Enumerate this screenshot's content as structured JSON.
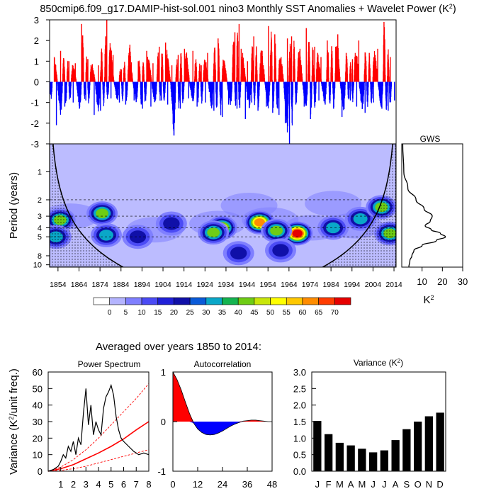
{
  "title": "850cmip6.f09_g17.DAMIP-hist-sol.001 nino3 Monthly SST Anomalies + Wavelet Power (K",
  "title_sup": "2",
  "title_close": ")",
  "subtitle": "Averaged over years 1850 to 2014:",
  "colors": {
    "positive": "#ff0000",
    "negative": "#0000ff",
    "coi_fill": "#bcbcff",
    "bar": "#000000",
    "red_line": "#ff0000"
  },
  "chart_data": [
    {
      "name": "SST anomalies",
      "type": "bar",
      "x_range": [
        1850,
        2015
      ],
      "ylim": [
        -3,
        3
      ],
      "yticks": [
        "3",
        "2",
        "1",
        "0",
        "-1",
        "-2",
        "-3"
      ],
      "peaks_positive": [
        [
          1852,
          1.2
        ],
        [
          1855,
          1.5
        ],
        [
          1859,
          1.0
        ],
        [
          1862,
          0.9
        ],
        [
          1865,
          2.8
        ],
        [
          1868,
          1.1
        ],
        [
          1873,
          0.8
        ],
        [
          1877,
          3.0
        ],
        [
          1880,
          1.3
        ],
        [
          1884,
          0.6
        ],
        [
          1888,
          1.8
        ],
        [
          1892,
          1.0
        ],
        [
          1896,
          1.5
        ],
        [
          1899,
          0.9
        ],
        [
          1902,
          1.7
        ],
        [
          1905,
          1.9
        ],
        [
          1908,
          0.8
        ],
        [
          1911,
          1.3
        ],
        [
          1914,
          1.6
        ],
        [
          1918,
          1.5
        ],
        [
          1922,
          0.8
        ],
        [
          1925,
          1.4
        ],
        [
          1930,
          2.1
        ],
        [
          1933,
          1.0
        ],
        [
          1938,
          2.4
        ],
        [
          1940,
          2.8
        ],
        [
          1941,
          1.6
        ],
        [
          1944,
          1.0
        ],
        [
          1947,
          2.2
        ],
        [
          1951,
          1.5
        ],
        [
          1954,
          2.7
        ],
        [
          1957,
          2.3
        ],
        [
          1960,
          1.2
        ],
        [
          1963,
          2.1
        ],
        [
          1965,
          2.2
        ],
        [
          1969,
          1.6
        ],
        [
          1972,
          2.6
        ],
        [
          1976,
          1.7
        ],
        [
          1979,
          1.2
        ],
        [
          1982,
          2.0
        ],
        [
          1986,
          1.7
        ],
        [
          1987,
          2.3
        ],
        [
          1991,
          1.4
        ],
        [
          1994,
          1.1
        ],
        [
          1997,
          2.0
        ],
        [
          2002,
          1.4
        ],
        [
          2006,
          1.6
        ],
        [
          2009,
          2.9
        ],
        [
          2012,
          1.2
        ]
      ],
      "peaks_negative": [
        [
          1850,
          -0.6
        ],
        [
          1853,
          -2.1
        ],
        [
          1857,
          -1.2
        ],
        [
          1861,
          -1.0
        ],
        [
          1864,
          -1.3
        ],
        [
          1867,
          -0.9
        ],
        [
          1871,
          -1.6
        ],
        [
          1874,
          -1.4
        ],
        [
          1879,
          -0.8
        ],
        [
          1883,
          -1.0
        ],
        [
          1886,
          -1.1
        ],
        [
          1890,
          -0.9
        ],
        [
          1894,
          -1.3
        ],
        [
          1898,
          -1.2
        ],
        [
          1903,
          -0.9
        ],
        [
          1906,
          -1.1
        ],
        [
          1909,
          -2.6
        ],
        [
          1912,
          -1.3
        ],
        [
          1916,
          -0.8
        ],
        [
          1920,
          -1.2
        ],
        [
          1924,
          -1.0
        ],
        [
          1928,
          -1.4
        ],
        [
          1932,
          -1.7
        ],
        [
          1935,
          -1.1
        ],
        [
          1939,
          -1.3
        ],
        [
          1943,
          -1.8
        ],
        [
          1946,
          -1.0
        ],
        [
          1949,
          -1.4
        ],
        [
          1953,
          -1.2
        ],
        [
          1956,
          -1.5
        ],
        [
          1959,
          -1.6
        ],
        [
          1962,
          -2.0
        ],
        [
          1964,
          -3.0
        ],
        [
          1967,
          -1.1
        ],
        [
          1971,
          -1.2
        ],
        [
          1974,
          -1.8
        ],
        [
          1978,
          -0.9
        ],
        [
          1981,
          -1.1
        ],
        [
          1985,
          -1.3
        ],
        [
          1989,
          -1.7
        ],
        [
          1993,
          -0.9
        ],
        [
          1996,
          -1.2
        ],
        [
          2000,
          -1.5
        ],
        [
          2004,
          -1.0
        ],
        [
          2008,
          -1.3
        ],
        [
          2011,
          -1.4
        ],
        [
          2014,
          -0.9
        ]
      ]
    },
    {
      "name": "Wavelet Power",
      "type": "heatmap",
      "x_range": [
        1850,
        2015
      ],
      "xticks": [
        "1854",
        "1864",
        "1874",
        "1884",
        "1894",
        "1904",
        "1914",
        "1924",
        "1934",
        "1944",
        "1954",
        "1964",
        "1974",
        "1984",
        "1994",
        "2004",
        "2014"
      ],
      "ylabel": "Period (years)",
      "yticks": [
        "1",
        "2",
        "3",
        "4",
        "5",
        "8",
        "10"
      ],
      "ytick_values": [
        1,
        2,
        3,
        4,
        5,
        8,
        10
      ],
      "yrange_log": [
        0.5,
        10.6
      ],
      "dashed_periods": [
        2,
        3,
        4,
        5
      ],
      "colorbar_labels": [
        "0",
        "5",
        "10",
        "15",
        "20",
        "25",
        "30",
        "35",
        "40",
        "45",
        "50",
        "55",
        "60",
        "65",
        "70"
      ],
      "colorbar_colors": [
        "#ffffff",
        "#b4b4ff",
        "#7f7fff",
        "#4b4bf5",
        "#2020d8",
        "#1010a8",
        "#0a5ad8",
        "#0aa7c8",
        "#14b450",
        "#6ecc14",
        "#c8e60a",
        "#ffff00",
        "#ffc800",
        "#ff8c00",
        "#ff3c00",
        "#e60000"
      ],
      "blobs": [
        {
          "year": 1855,
          "period": 3.3,
          "intensity": 40
        },
        {
          "year": 1853,
          "period": 5.0,
          "intensity": 30
        },
        {
          "year": 1875,
          "period": 2.8,
          "intensity": 45
        },
        {
          "year": 1877,
          "period": 4.8,
          "intensity": 35
        },
        {
          "year": 1892,
          "period": 5.0,
          "intensity": 20
        },
        {
          "year": 1908,
          "period": 3.6,
          "intensity": 22
        },
        {
          "year": 1932,
          "period": 4.0,
          "intensity": 50
        },
        {
          "year": 1928,
          "period": 4.5,
          "intensity": 42
        },
        {
          "year": 1950,
          "period": 3.5,
          "intensity": 60
        },
        {
          "year": 1968,
          "period": 4.6,
          "intensity": 72
        },
        {
          "year": 1958,
          "period": 4.3,
          "intensity": 45
        },
        {
          "year": 1985,
          "period": 4.0,
          "intensity": 30
        },
        {
          "year": 1998,
          "period": 3.2,
          "intensity": 35
        },
        {
          "year": 2008,
          "period": 2.4,
          "intensity": 40
        },
        {
          "year": 2012,
          "period": 4.6,
          "intensity": 45
        },
        {
          "year": 1940,
          "period": 7.5,
          "intensity": 20
        },
        {
          "year": 1960,
          "period": 7.0,
          "intensity": 25
        }
      ]
    },
    {
      "name": "GWS",
      "type": "line",
      "title": "GWS",
      "xticks": [
        "10",
        "20",
        "30"
      ],
      "xlabel": "K",
      "xlabel_sup": "2",
      "xlim": [
        0,
        30
      ],
      "periods": [
        0.5,
        1.0,
        1.5,
        2.0,
        2.5,
        3.0,
        3.4,
        3.8,
        4.2,
        4.6,
        5.0,
        5.5,
        6.2,
        7.0,
        8.0,
        9.0,
        10.6
      ],
      "values": [
        0.5,
        1.0,
        3.0,
        7.0,
        11.0,
        15.0,
        14.0,
        11.5,
        14.5,
        19.0,
        21.5,
        17.0,
        10.0,
        6.0,
        5.0,
        4.0,
        3.5
      ]
    },
    {
      "name": "Power Spectrum",
      "type": "line",
      "title": "Power Spectrum",
      "ylabel": "Variance (K",
      "ylabel_sup": "2",
      "ylabel_tail": "/unit freq.)",
      "xlim": [
        0,
        8
      ],
      "ylim": [
        0,
        60
      ],
      "xticks": [
        "1",
        "2",
        "3",
        "4",
        "5",
        "6",
        "7",
        "8"
      ],
      "yticks": [
        "0",
        "10",
        "20",
        "30",
        "40",
        "50",
        "60"
      ],
      "spectrum_x": [
        0,
        0.4,
        0.8,
        1.0,
        1.2,
        1.4,
        1.6,
        1.8,
        2.0,
        2.2,
        2.4,
        2.6,
        2.8,
        3.0,
        3.2,
        3.4,
        3.6,
        3.8,
        4.0,
        4.2,
        4.4,
        4.6,
        4.8,
        5.0,
        5.2,
        5.4,
        5.6,
        5.8,
        6.0,
        6.4,
        6.8,
        7.2,
        7.6,
        8.0
      ],
      "spectrum_y": [
        0,
        1,
        3,
        6,
        10,
        8,
        15,
        12,
        18,
        10,
        20,
        16,
        35,
        50,
        28,
        40,
        22,
        30,
        25,
        22,
        38,
        45,
        48,
        52,
        46,
        33,
        25,
        20,
        18,
        15,
        12,
        10,
        11,
        10
      ],
      "red_mean_x": [
        0,
        1,
        2,
        3,
        4,
        5,
        6,
        7,
        8
      ],
      "red_mean_y": [
        0,
        1.5,
        4,
        7.5,
        11,
        15,
        19.5,
        25,
        30
      ],
      "red_hi_y": [
        0,
        2.5,
        7,
        13,
        20,
        28,
        36,
        44,
        53
      ],
      "red_lo_y": [
        0,
        0.5,
        1.5,
        3,
        5,
        7,
        9,
        11,
        13
      ]
    },
    {
      "name": "Autocorrelation",
      "type": "area",
      "title": "Autocorrelation",
      "xlim": [
        0,
        48
      ],
      "ylim": [
        -1,
        1
      ],
      "xticks": [
        "0",
        "12",
        "24",
        "36",
        "48"
      ],
      "yticks": [
        "1",
        "0",
        "-1"
      ],
      "lags": [
        0,
        2,
        4,
        6,
        8,
        10,
        12,
        14,
        16,
        18,
        20,
        22,
        24,
        26,
        28,
        30,
        32,
        34,
        36,
        38,
        40,
        42,
        44,
        46,
        48
      ],
      "values": [
        1.0,
        0.85,
        0.64,
        0.4,
        0.17,
        -0.03,
        -0.15,
        -0.22,
        -0.26,
        -0.27,
        -0.26,
        -0.23,
        -0.19,
        -0.14,
        -0.09,
        -0.05,
        -0.02,
        0.01,
        0.02,
        0.03,
        0.03,
        0.02,
        0.01,
        0.0,
        0.0
      ]
    },
    {
      "name": "Variance",
      "type": "bar",
      "title": "Variance (K",
      "title_sup": "2",
      "title_close": ")",
      "categories": [
        "J",
        "F",
        "M",
        "A",
        "M",
        "J",
        "J",
        "A",
        "S",
        "O",
        "N",
        "D"
      ],
      "values": [
        1.52,
        1.12,
        0.86,
        0.78,
        0.68,
        0.57,
        0.63,
        0.94,
        1.27,
        1.5,
        1.66,
        1.77
      ],
      "ylim": [
        0,
        3.0
      ],
      "yticks": [
        "3.0",
        "2.5",
        "2.0",
        "1.5",
        "1.0",
        "0.5",
        "0.0"
      ]
    }
  ]
}
